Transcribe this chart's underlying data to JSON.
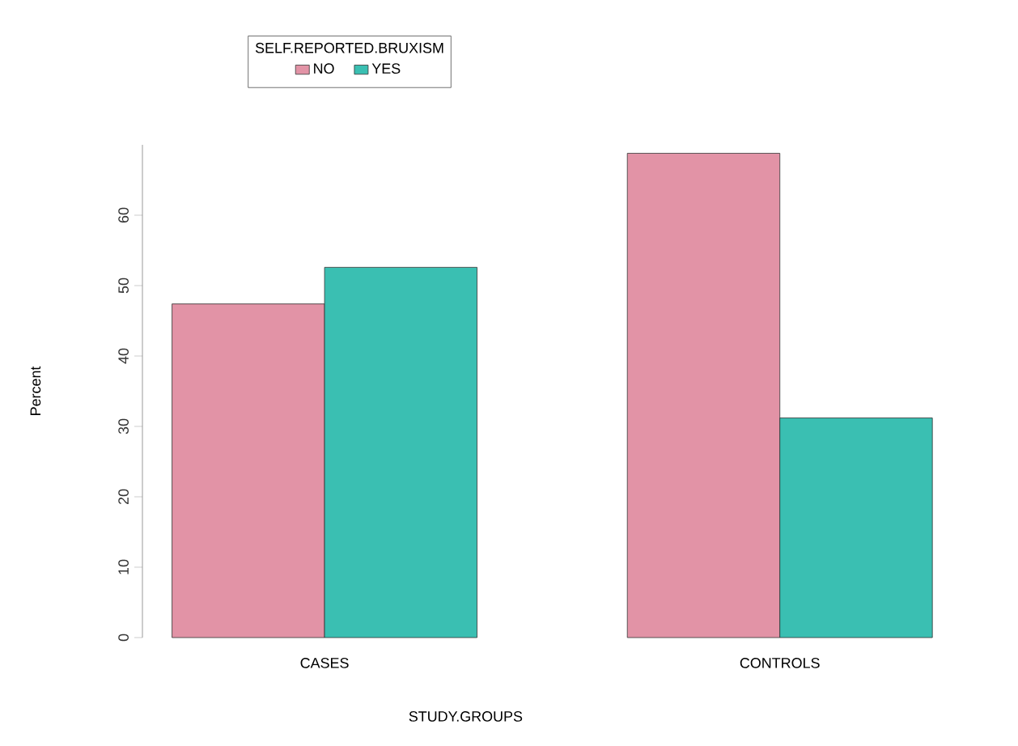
{
  "chart_data": {
    "type": "bar",
    "xlabel": "STUDY.GROUPS",
    "ylabel": "Percent",
    "legend_title": "SELF.REPORTED.BRUXISM",
    "legend": "top left",
    "categories": [
      "CASES",
      "CONTROLS"
    ],
    "series": [
      {
        "name": "NO",
        "color": "#e293a6",
        "values": [
          47.4,
          68.8
        ]
      },
      {
        "name": "YES",
        "color": "#3abfb2",
        "values": [
          52.6,
          31.2
        ]
      }
    ],
    "ylim": [
      0,
      70
    ],
    "yticks": [
      0,
      10,
      20,
      30,
      40,
      50,
      60
    ]
  }
}
